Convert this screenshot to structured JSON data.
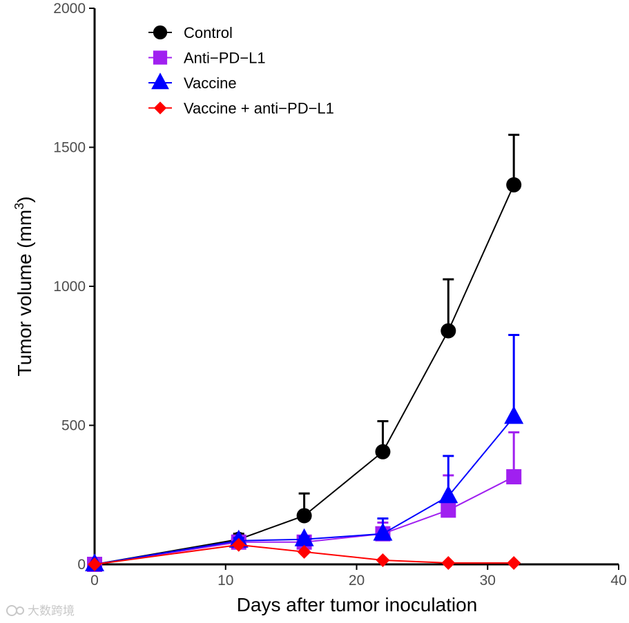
{
  "chart_data": {
    "type": "line",
    "title": "",
    "xlabel": "Days after tumor inoculation",
    "ylabel": "Tumor volume (mm",
    "ylabel_sup": "3",
    "ylabel_close": ")",
    "xlim": [
      0,
      40
    ],
    "ylim": [
      0,
      2000
    ],
    "xticks": [
      0,
      10,
      20,
      30,
      40
    ],
    "yticks": [
      0,
      500,
      1000,
      1500,
      2000
    ],
    "xtick_labels": [
      "0",
      "10",
      "20",
      "30",
      "40"
    ],
    "ytick_labels": [
      "0",
      "500",
      "1000",
      "1500",
      "2000"
    ],
    "grid": false,
    "legend_position": "top-left",
    "series": [
      {
        "name": "Control",
        "color": "#000000",
        "marker": "circle",
        "x": [
          0,
          11,
          16,
          22,
          27,
          32
        ],
        "y": [
          0,
          90,
          175,
          405,
          840,
          1365
        ],
        "err": [
          0,
          20,
          80,
          110,
          185,
          180
        ]
      },
      {
        "name": "Anti−PD−L1",
        "color": "#a020f0",
        "marker": "square",
        "x": [
          0,
          11,
          16,
          22,
          27,
          32
        ],
        "y": [
          0,
          80,
          80,
          110,
          195,
          315
        ],
        "err": [
          0,
          10,
          10,
          40,
          125,
          160
        ]
      },
      {
        "name": "Vaccine",
        "color": "#0000ff",
        "marker": "triangle",
        "x": [
          0,
          11,
          16,
          22,
          27,
          32
        ],
        "y": [
          0,
          85,
          90,
          110,
          245,
          530
        ],
        "err": [
          0,
          10,
          10,
          55,
          145,
          295
        ]
      },
      {
        "name": "Vaccine + anti−PD−L1",
        "color": "#ff0000",
        "marker": "diamond",
        "x": [
          0,
          11,
          16,
          22,
          27,
          32
        ],
        "y": [
          0,
          70,
          45,
          15,
          5,
          5
        ],
        "err": [
          0,
          0,
          0,
          0,
          0,
          0
        ]
      }
    ]
  },
  "watermark": {
    "text": "大数跨境"
  }
}
